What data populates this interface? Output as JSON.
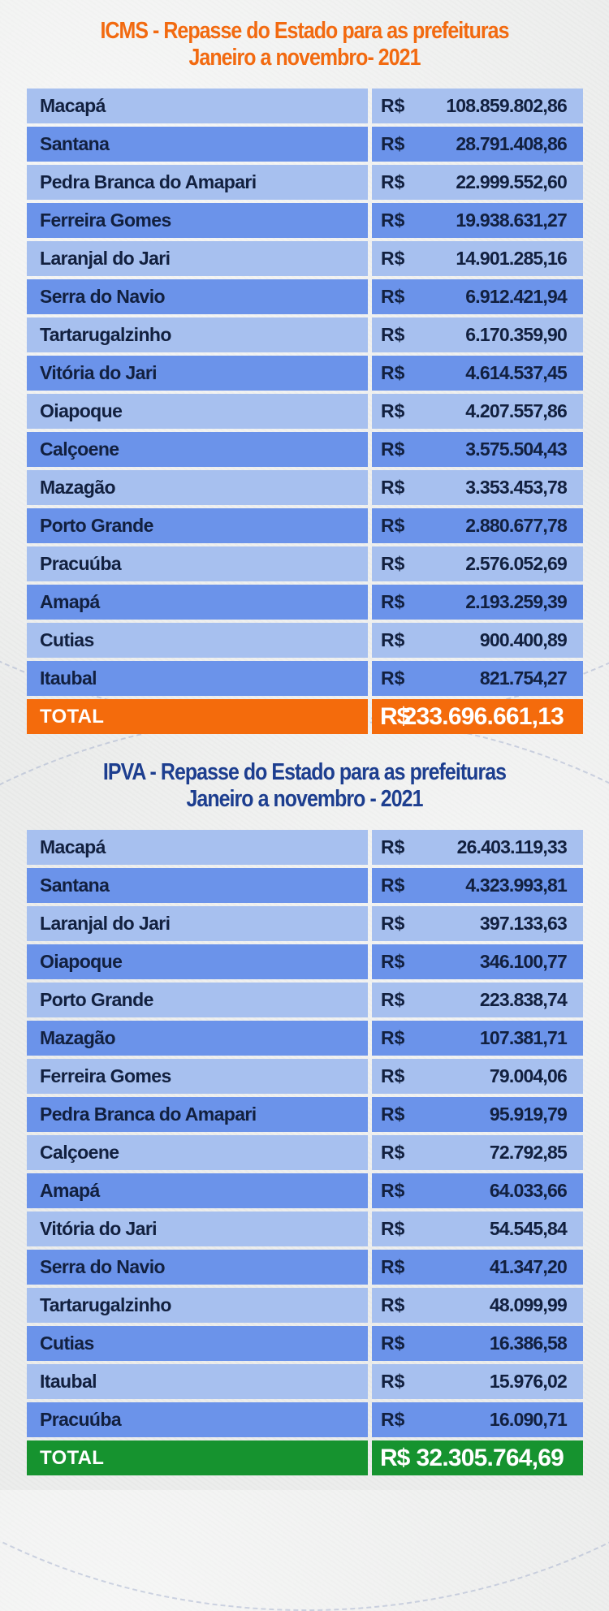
{
  "icms": {
    "title_line1": "ICMS - Repasse do Estado para as prefeituras",
    "title_line2": "Janeiro a novembro- 2021",
    "currency": "R$",
    "rows": [
      {
        "name": "Macapá",
        "value": "108.859.802,86"
      },
      {
        "name": "Santana",
        "value": "28.791.408,86"
      },
      {
        "name": "Pedra Branca do Amapari",
        "value": "22.999.552,60"
      },
      {
        "name": "Ferreira Gomes",
        "value": "19.938.631,27"
      },
      {
        "name": "Laranjal do Jari",
        "value": "14.901.285,16"
      },
      {
        "name": "Serra do Navio",
        "value": "6.912.421,94"
      },
      {
        "name": "Tartarugalzinho",
        "value": "6.170.359,90"
      },
      {
        "name": "Vitória do Jari",
        "value": "4.614.537,45"
      },
      {
        "name": "Oiapoque",
        "value": "4.207.557,86"
      },
      {
        "name": "Calçoene",
        "value": "3.575.504,43"
      },
      {
        "name": "Mazagão",
        "value": "3.353.453,78"
      },
      {
        "name": "Porto Grande",
        "value": "2.880.677,78"
      },
      {
        "name": "Pracuúba",
        "value": "2.576.052,69"
      },
      {
        "name": "Amapá",
        "value": "2.193.259,39"
      },
      {
        "name": "Cutias",
        "value": "900.400,89"
      },
      {
        "name": "Itaubal",
        "value": "821.754,27"
      }
    ],
    "total_label": "TOTAL",
    "total_value": "233.696.661,13"
  },
  "ipva": {
    "title_line1": "IPVA - Repasse do Estado para as prefeituras",
    "title_line2": "Janeiro a novembro - 2021",
    "currency": "R$",
    "rows": [
      {
        "name": "Macapá",
        "value": "26.403.119,33"
      },
      {
        "name": "Santana",
        "value": "4.323.993,81"
      },
      {
        "name": "Laranjal do Jari",
        "value": "397.133,63"
      },
      {
        "name": "Oiapoque",
        "value": "346.100,77"
      },
      {
        "name": "Porto Grande",
        "value": "223.838,74"
      },
      {
        "name": "Mazagão",
        "value": "107.381,71"
      },
      {
        "name": "Ferreira Gomes",
        "value": "79.004,06"
      },
      {
        "name": "Pedra Branca do Amapari",
        "value": "95.919,79"
      },
      {
        "name": "Calçoene",
        "value": "72.792,85"
      },
      {
        "name": "Amapá",
        "value": "64.033,66"
      },
      {
        "name": "Vitória do Jari",
        "value": "54.545,84"
      },
      {
        "name": "Serra do Navio",
        "value": "41.347,20"
      },
      {
        "name": "Tartarugalzinho",
        "value": "48.099,99"
      },
      {
        "name": "Cutias",
        "value": "16.386,58"
      },
      {
        "name": "Itaubal",
        "value": "15.976,02"
      },
      {
        "name": "Pracuúba",
        "value": "16.090,71"
      }
    ],
    "total_label": "TOTAL",
    "total_value": "32.305.764,69"
  },
  "colors": {
    "icms_title": "#f26a10",
    "ipva_title": "#1d3e8f",
    "row_light": "#a7c0ef",
    "row_dark": "#6b93ea",
    "total_icms": "#f46b0c",
    "total_ipva": "#16932f"
  }
}
